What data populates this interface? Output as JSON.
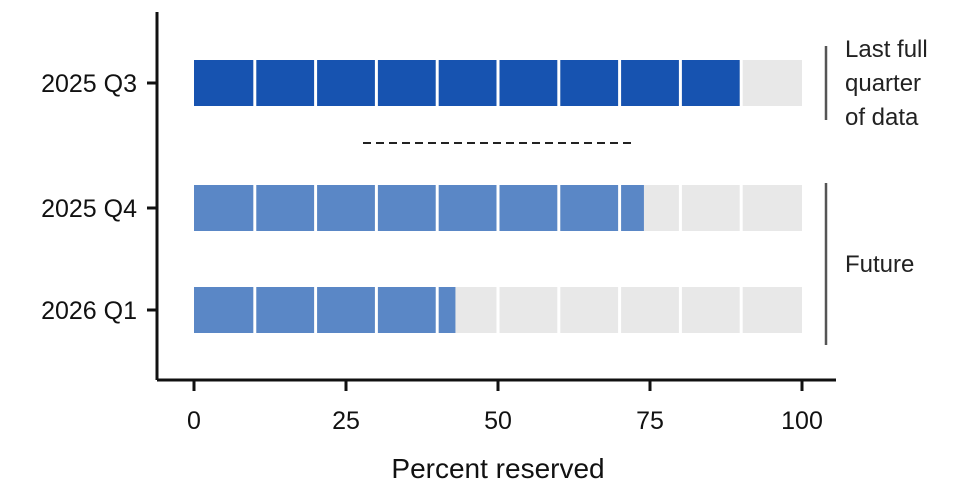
{
  "chart_data": {
    "type": "bar",
    "orientation": "horizontal",
    "style": "segmented",
    "categories": [
      "2025 Q3",
      "2025 Q4",
      "2026 Q1"
    ],
    "values": [
      90,
      74,
      43
    ],
    "max": 100,
    "segment_size": 10,
    "xlabel": "Percent reserved",
    "ylabel": "",
    "xlim": [
      0,
      100
    ],
    "x_ticks": [
      0,
      25,
      50,
      75,
      100
    ],
    "grid": false,
    "colors": {
      "past": "#1753b0",
      "future": "#5a87c6",
      "remainder": "#e8e8e8"
    },
    "groups": [
      {
        "label_lines": [
          "Last full",
          "quarter",
          "of data"
        ],
        "categories": [
          "2025 Q3"
        ]
      },
      {
        "label_lines": [
          "Future"
        ],
        "categories": [
          "2025 Q4",
          "2026 Q1"
        ]
      }
    ]
  }
}
